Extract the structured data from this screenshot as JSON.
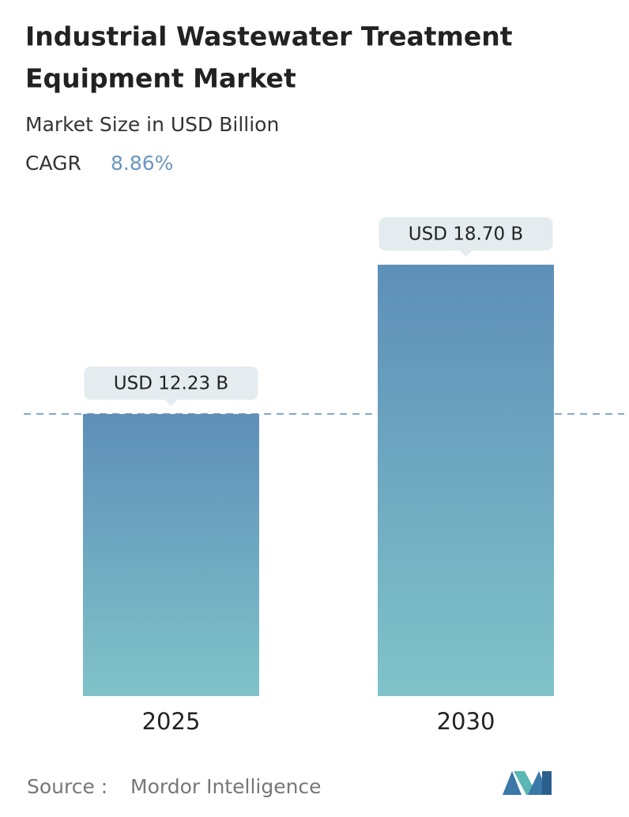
{
  "chart_data": {
    "type": "bar",
    "title": "Industrial Wastewater Treatment Equipment Market",
    "subtitle": "Market Size in USD Billion",
    "cagr_label": "CAGR",
    "cagr": "8.86%",
    "categories": [
      "2025",
      "2030"
    ],
    "values": [
      12.23,
      18.7
    ],
    "value_labels": [
      "USD 12.23 B",
      "USD 18.70 B"
    ],
    "color_top": "#5e8fb8",
    "color_bottom": "#80c3c9",
    "source_label": "Source :",
    "source": "Mordor Intelligence"
  }
}
